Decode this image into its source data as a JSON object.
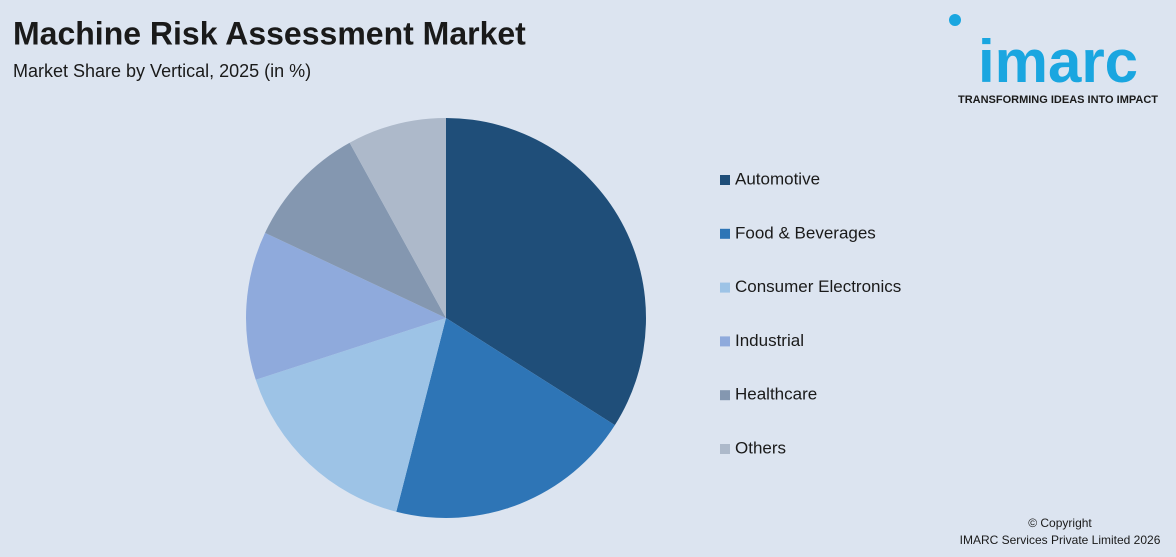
{
  "chart_data": {
    "type": "pie",
    "title": "Machine Risk Assessment Market",
    "subtitle": "Market Share by Vertical, 2025 (in %)",
    "categories": [
      "Automotive",
      "Food & Beverages",
      "Consumer Electronics",
      "Industrial",
      "Healthcare",
      "Others"
    ],
    "values": [
      34,
      20,
      16,
      12,
      10,
      8
    ],
    "colors": [
      "#1f4e79",
      "#2e75b6",
      "#9dc3e6",
      "#8faadc",
      "#8497b0",
      "#adb9ca"
    ],
    "legend": "right"
  },
  "logo": {
    "name": "imarc",
    "tagline": "TRANSFORMING IDEAS INTO IMPACT"
  },
  "footer": {
    "copyright": "© Copyright",
    "company": "IMARC Services Private Limited 2026"
  }
}
